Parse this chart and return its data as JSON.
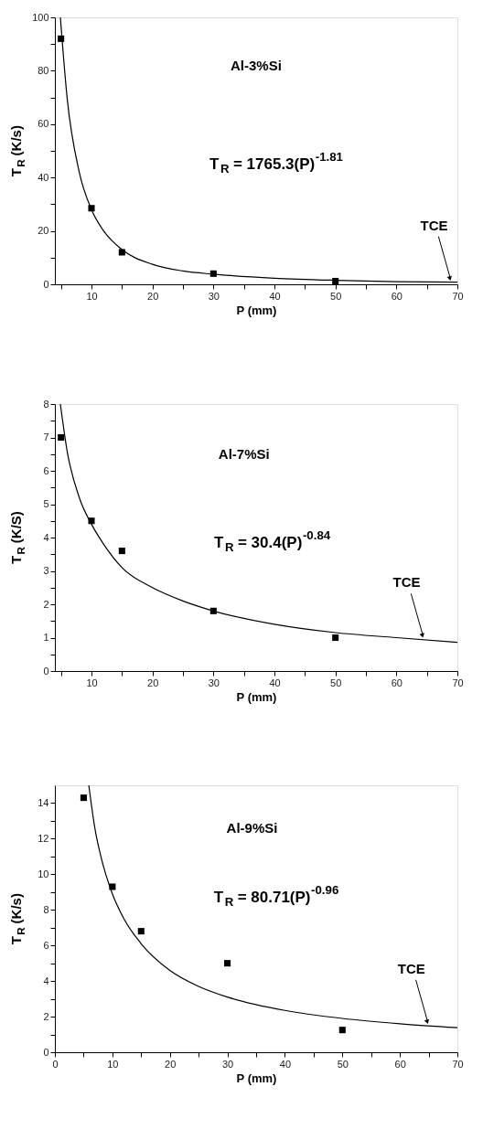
{
  "chart_data": [
    {
      "type": "scatter",
      "line_style": "solid",
      "grid": false,
      "xlabel": "P (mm)",
      "ylabel": "T$_{R}$ (K/s)",
      "xlim": [
        4,
        70
      ],
      "xticks": [
        {
          "value": 5,
          "label": null
        },
        10,
        {
          "value": 15,
          "label": null
        },
        20,
        {
          "value": 25,
          "label": null
        },
        30,
        {
          "value": 35,
          "label": null
        },
        40,
        {
          "value": 45,
          "label": null
        },
        50,
        {
          "value": 55,
          "label": null
        },
        60,
        {
          "value": 65,
          "label": null
        },
        70
      ],
      "ylim": [
        0,
        100
      ],
      "yticks": [
        0,
        {
          "value": 10,
          "label": null
        },
        20,
        {
          "value": 30,
          "label": null
        },
        40,
        {
          "value": 50,
          "label": null
        },
        60,
        {
          "value": 70,
          "label": null
        },
        80,
        {
          "value": 90,
          "label": null
        },
        100
      ],
      "annotations": [
        "Al-3%Si",
        "T$_{R}$ = 1765.3(P)$^{-1.81}$",
        {
          "text": "TCE",
          "x": 69,
          "y": 0.8
        }
      ],
      "series": [
        {
          "marker": "square",
          "color": "#000000",
          "x": [
            5,
            10,
            15,
            30,
            50
          ],
          "values": [
            92,
            28.5,
            12,
            4,
            1.2
          ]
        },
        {
          "type": "line",
          "color": "#000000",
          "x": [
            4.9,
            6,
            8,
            10,
            12,
            15,
            20,
            25,
            30,
            40,
            50,
            60,
            70
          ],
          "values": [
            100,
            70,
            42,
            28,
            20,
            13,
            7.5,
            5,
            3.8,
            2.3,
            1.5,
            1,
            0.8
          ]
        }
      ]
    },
    {
      "type": "scatter",
      "line_style": "solid",
      "grid": false,
      "xlabel": "P (mm)",
      "ylabel": "T$_{R}$ (K/S)",
      "xlim": [
        4,
        70
      ],
      "xticks": [
        {
          "value": 5,
          "label": null
        },
        10,
        {
          "value": 15,
          "label": null
        },
        20,
        {
          "value": 25,
          "label": null
        },
        30,
        {
          "value": 35,
          "label": null
        },
        40,
        {
          "value": 45,
          "label": null
        },
        50,
        {
          "value": 55,
          "label": null
        },
        60,
        {
          "value": 65,
          "label": null
        },
        70
      ],
      "ylim": [
        0,
        8
      ],
      "yticks": [
        0,
        {
          "value": 0.5,
          "label": null
        },
        1,
        {
          "value": 1.5,
          "label": null
        },
        2,
        {
          "value": 2.5,
          "label": null
        },
        3,
        {
          "value": 3.5,
          "label": null
        },
        4,
        {
          "value": 4.5,
          "label": null
        },
        5,
        {
          "value": 5.5,
          "label": null
        },
        6,
        {
          "value": 6.5,
          "label": null
        },
        7,
        {
          "value": 7.5,
          "label": null
        },
        8
      ],
      "annotations": [
        "Al-7%Si",
        "T$_{R}$ = 30.4(P)$^{-0.84}$",
        {
          "text": "TCE",
          "x": 64.5,
          "y": 0.95
        }
      ],
      "series": [
        {
          "marker": "square",
          "color": "#000000",
          "x": [
            5,
            10,
            15,
            30,
            50
          ],
          "values": [
            7,
            4.5,
            3.6,
            1.8,
            1
          ]
        },
        {
          "type": "line",
          "color": "#000000",
          "x": [
            4.9,
            6,
            8,
            10,
            12,
            15,
            20,
            25,
            30,
            40,
            50,
            60,
            70
          ],
          "values": [
            8,
            6.6,
            5.2,
            4.4,
            3.8,
            3.1,
            2.5,
            2.1,
            1.8,
            1.4,
            1.15,
            1,
            0.86
          ]
        }
      ]
    },
    {
      "type": "scatter",
      "line_style": "solid",
      "grid": false,
      "xlabel": "P (mm)",
      "ylabel": "T$_{R}$ (K/s)",
      "xlim": [
        0,
        70
      ],
      "xticks": [
        0,
        {
          "value": 5,
          "label": null
        },
        10,
        {
          "value": 15,
          "label": null
        },
        20,
        {
          "value": 25,
          "label": null
        },
        30,
        {
          "value": 35,
          "label": null
        },
        40,
        {
          "value": 45,
          "label": null
        },
        50,
        {
          "value": 55,
          "label": null
        },
        60,
        {
          "value": 65,
          "label": null
        },
        70
      ],
      "ylim": [
        0,
        15
      ],
      "yticks": [
        0,
        {
          "value": 1,
          "label": null
        },
        2,
        {
          "value": 3,
          "label": null
        },
        4,
        {
          "value": 5,
          "label": null
        },
        6,
        {
          "value": 7,
          "label": null
        },
        8,
        {
          "value": 9,
          "label": null
        },
        10,
        {
          "value": 11,
          "label": null
        },
        12,
        {
          "value": 13,
          "label": null
        },
        14
      ],
      "annotations": [
        "Al-9%Si",
        "T$_{R}$ = 80.71(P)$^{-0.96}$",
        {
          "text": "TCE",
          "x": 65,
          "y": 1.5
        }
      ],
      "series": [
        {
          "marker": "square",
          "color": "#000000",
          "x": [
            5,
            10,
            15,
            30,
            50
          ],
          "values": [
            14.3,
            9.3,
            6.8,
            5,
            1.25
          ]
        },
        {
          "type": "line",
          "color": "#000000",
          "x": [
            5.9,
            7,
            8,
            10,
            12,
            15,
            20,
            25,
            30,
            40,
            50,
            60,
            70
          ],
          "values": [
            15,
            12.5,
            11,
            8.9,
            7.5,
            6.1,
            4.6,
            3.7,
            3.1,
            2.35,
            1.9,
            1.6,
            1.38
          ]
        }
      ]
    }
  ]
}
